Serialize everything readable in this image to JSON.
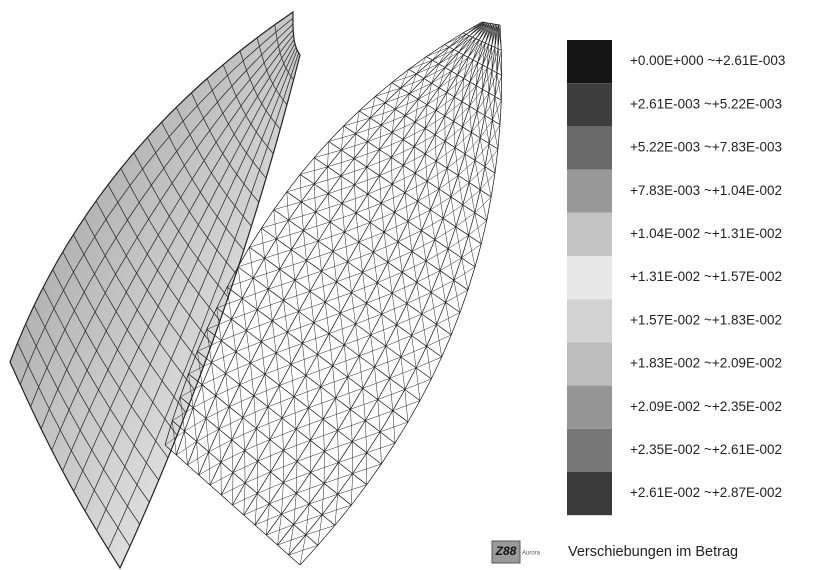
{
  "legend": {
    "entries": [
      {
        "label": "+0.00E+000 ~+2.61E-003",
        "color": "#151515"
      },
      {
        "label": "+2.61E-003 ~+5.22E-003",
        "color": "#3d3d3d"
      },
      {
        "label": "+5.22E-003 ~+7.83E-003",
        "color": "#6a6a6a"
      },
      {
        "label": "+7.83E-003 ~+1.04E-002",
        "color": "#989898"
      },
      {
        "label": "+1.04E-002 ~+1.31E-002",
        "color": "#c4c4c4"
      },
      {
        "label": "+1.31E-002 ~+1.57E-002",
        "color": "#e8e8e8"
      },
      {
        "label": "+1.57E-002 ~+1.83E-002",
        "color": "#d2d2d2"
      },
      {
        "label": "+1.83E-002 ~+2.09E-002",
        "color": "#bdbdbd"
      },
      {
        "label": "+2.09E-002 ~+2.35E-002",
        "color": "#959595"
      },
      {
        "label": "+2.35E-002 ~+2.61E-002",
        "color": "#777777"
      },
      {
        "label": "+2.61E-002 ~+2.87E-002",
        "color": "#3a3a3a"
      }
    ]
  },
  "logo": {
    "name": "Z88",
    "subtitle": "Aurora"
  },
  "caption": "Verschiebungen im Betrag"
}
